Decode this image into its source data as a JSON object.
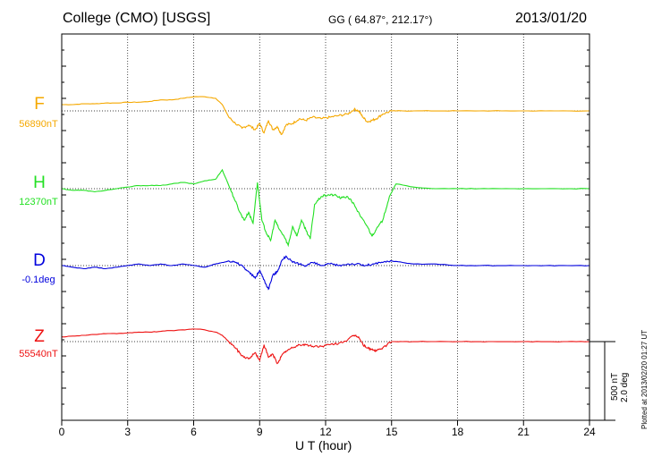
{
  "header": {
    "station": "College (CMO)  [USGS]",
    "coords": "GG ( 64.87°, 212.17°)",
    "date": "2013/01/20"
  },
  "footer": {
    "plotted": "Plotted at 2013/02/20 01:27 UT"
  },
  "scale": {
    "nt": "500 nT",
    "deg": "2.0 deg"
  },
  "chart_data": {
    "type": "line",
    "xlabel": "U T (hour)",
    "xlim": [
      0,
      24
    ],
    "xticks": [
      "0",
      "3",
      "6",
      "9",
      "12",
      "15",
      "18",
      "21",
      "24"
    ],
    "grid": true,
    "series": [
      {
        "name": "F",
        "baseline": "56890nT",
        "color": "#f5a800",
        "x": [
          0,
          0.5,
          1,
          1.5,
          2,
          2.5,
          3,
          3.5,
          4,
          4.5,
          5,
          5.5,
          6,
          6.5,
          7,
          7.3,
          7.6,
          7.9,
          8.2,
          8.5,
          8.8,
          9.0,
          9.2,
          9.4,
          9.6,
          9.8,
          10.0,
          10.2,
          10.5,
          10.8,
          11.1,
          11.4,
          11.8,
          12.2,
          12.6,
          13.0,
          13.3,
          13.5,
          13.7,
          13.9,
          14.1,
          14.3,
          14.6,
          15.0,
          15.5,
          16,
          17,
          18,
          19,
          20,
          21,
          22,
          23,
          24
        ],
        "values": [
          40,
          40,
          45,
          45,
          50,
          50,
          55,
          55,
          60,
          70,
          70,
          80,
          90,
          90,
          80,
          40,
          -40,
          -80,
          -110,
          -90,
          -120,
          -80,
          -140,
          -60,
          -120,
          -100,
          -150,
          -90,
          -80,
          -50,
          -60,
          -40,
          -50,
          -40,
          -30,
          -20,
          10,
          0,
          -40,
          -70,
          -60,
          -50,
          -20,
          0,
          0,
          0,
          0,
          0,
          0,
          0,
          0,
          0,
          0,
          0
        ]
      },
      {
        "name": "H",
        "baseline": "12370nT",
        "color": "#22e022",
        "x": [
          0,
          0.5,
          1,
          1.5,
          2,
          2.5,
          3,
          3.5,
          4,
          4.5,
          5,
          5.5,
          6,
          6.5,
          7,
          7.3,
          7.6,
          7.9,
          8.1,
          8.3,
          8.5,
          8.7,
          8.9,
          9.1,
          9.3,
          9.5,
          9.7,
          9.9,
          10.1,
          10.3,
          10.5,
          10.7,
          10.9,
          11.1,
          11.3,
          11.5,
          11.8,
          12.1,
          12.4,
          12.7,
          13.0,
          13.3,
          13.6,
          13.9,
          14.1,
          14.3,
          14.6,
          14.9,
          15.2,
          16,
          17,
          18,
          19,
          20,
          21,
          22,
          23,
          24
        ],
        "values": [
          0,
          -10,
          -10,
          -20,
          -10,
          0,
          10,
          20,
          20,
          20,
          30,
          40,
          30,
          50,
          60,
          120,
          20,
          -80,
          -150,
          -200,
          -150,
          -220,
          40,
          -200,
          -280,
          -330,
          -200,
          -260,
          -300,
          -360,
          -240,
          -300,
          -200,
          -260,
          -320,
          -100,
          -50,
          -40,
          -40,
          -60,
          -50,
          -100,
          -180,
          -240,
          -300,
          -260,
          -200,
          -50,
          30,
          10,
          0,
          0,
          0,
          0,
          0,
          0,
          0,
          0
        ]
      },
      {
        "name": "D",
        "baseline": "-0.1deg",
        "color": "#0000dd",
        "x": [
          0,
          0.5,
          1,
          1.5,
          2,
          2.5,
          3,
          3.5,
          4,
          4.5,
          5,
          5.5,
          6,
          6.5,
          7,
          7.3,
          7.6,
          7.9,
          8.2,
          8.5,
          8.8,
          9.0,
          9.2,
          9.4,
          9.6,
          9.8,
          10.0,
          10.2,
          10.5,
          10.8,
          11.1,
          11.4,
          11.8,
          12.2,
          12.6,
          13.0,
          13.4,
          13.8,
          14.2,
          14.6,
          15.0,
          15.5,
          16,
          17,
          18,
          19,
          20,
          21,
          22,
          23,
          24
        ],
        "values": [
          0,
          -10,
          -20,
          -10,
          -20,
          -10,
          0,
          10,
          0,
          10,
          0,
          10,
          0,
          -10,
          10,
          20,
          30,
          20,
          0,
          -40,
          -80,
          -30,
          -90,
          -150,
          -60,
          -40,
          30,
          60,
          20,
          10,
          0,
          20,
          0,
          10,
          0,
          10,
          10,
          0,
          10,
          20,
          30,
          20,
          10,
          10,
          0,
          0,
          0,
          0,
          0,
          0,
          0
        ]
      },
      {
        "name": "Z",
        "baseline": "55540nT",
        "color": "#ee1111",
        "x": [
          0,
          0.5,
          1,
          1.5,
          2,
          2.5,
          3,
          3.5,
          4,
          4.5,
          5,
          5.5,
          6,
          6.5,
          7,
          7.3,
          7.6,
          7.9,
          8.2,
          8.5,
          8.8,
          9.0,
          9.2,
          9.4,
          9.6,
          9.8,
          10.0,
          10.2,
          10.5,
          10.8,
          11.1,
          11.4,
          11.8,
          12.2,
          12.6,
          13.0,
          13.3,
          13.5,
          13.7,
          13.9,
          14.1,
          14.3,
          14.6,
          15.0,
          15.5,
          16,
          17,
          18,
          19,
          20,
          21,
          22,
          23,
          24
        ],
        "values": [
          30,
          35,
          40,
          45,
          50,
          50,
          55,
          60,
          60,
          65,
          70,
          75,
          80,
          75,
          60,
          40,
          0,
          -40,
          -90,
          -110,
          -70,
          -120,
          -20,
          -100,
          -80,
          -140,
          -90,
          -60,
          -40,
          -20,
          -20,
          -30,
          -30,
          -20,
          -10,
          10,
          40,
          30,
          -20,
          -40,
          -50,
          -60,
          -40,
          0,
          0,
          0,
          0,
          0,
          0,
          0,
          0,
          0,
          0,
          0
        ]
      }
    ]
  }
}
